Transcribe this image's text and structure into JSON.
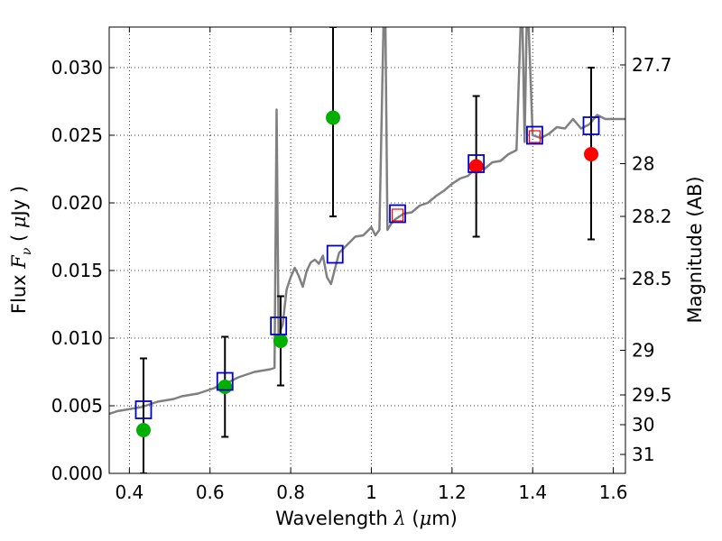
{
  "chart_data": {
    "type": "scatter",
    "xlabel": {
      "prefix": "Wavelength  ",
      "symbol": "λ",
      "unit_open": " (",
      "unit_mu": "μ",
      "unit_rest": "m)"
    },
    "ylabel": {
      "prefix": "Flux  ",
      "symbol": "F",
      "sub": "ν",
      "unit_open": "  ( ",
      "unit_mu": "μ",
      "unit_rest": "Jy )"
    },
    "y2label": "Magnitude (AB)",
    "xlim": [
      0.35,
      1.63
    ],
    "ylim": [
      0.0,
      0.033
    ],
    "grid": true,
    "x_ticks": [
      {
        "v": 0.4,
        "label": "0.4"
      },
      {
        "v": 0.6,
        "label": "0.6"
      },
      {
        "v": 0.8,
        "label": "0.8"
      },
      {
        "v": 1.0,
        "label": "1"
      },
      {
        "v": 1.2,
        "label": "1.2"
      },
      {
        "v": 1.4,
        "label": "1.4"
      },
      {
        "v": 1.6,
        "label": "1.6"
      }
    ],
    "y_ticks": [
      {
        "v": 0.0,
        "label": "0.000"
      },
      {
        "v": 0.005,
        "label": "0.005"
      },
      {
        "v": 0.01,
        "label": "0.010"
      },
      {
        "v": 0.015,
        "label": "0.015"
      },
      {
        "v": 0.02,
        "label": "0.020"
      },
      {
        "v": 0.025,
        "label": "0.025"
      },
      {
        "v": 0.03,
        "label": "0.030"
      }
    ],
    "mag_ticks": [
      {
        "label": "27.7",
        "flux": 0.0302
      },
      {
        "label": "28",
        "flux": 0.0229
      },
      {
        "label": "28.2",
        "flux": 0.019
      },
      {
        "label": "28.5",
        "flux": 0.0144
      },
      {
        "label": "29",
        "flux": 0.0091
      },
      {
        "label": "29.5",
        "flux": 0.0058
      },
      {
        "label": "30",
        "flux": 0.0036
      },
      {
        "label": "31",
        "flux": 0.0014
      }
    ],
    "series": [
      {
        "type": "line",
        "color": "#808080",
        "x": [
          0.35,
          0.37,
          0.39,
          0.41,
          0.43,
          0.45,
          0.47,
          0.49,
          0.51,
          0.53,
          0.55,
          0.57,
          0.59,
          0.61,
          0.63,
          0.65,
          0.67,
          0.69,
          0.71,
          0.73,
          0.75,
          0.76,
          0.765,
          0.77,
          0.775,
          0.78,
          0.79,
          0.8,
          0.81,
          0.82,
          0.83,
          0.84,
          0.85,
          0.86,
          0.87,
          0.88,
          0.89,
          0.9,
          0.92,
          0.94,
          0.96,
          0.98,
          1.0,
          1.01,
          1.02,
          1.03,
          1.035,
          1.04,
          1.05,
          1.06,
          1.08,
          1.1,
          1.12,
          1.14,
          1.16,
          1.18,
          1.2,
          1.22,
          1.24,
          1.26,
          1.28,
          1.3,
          1.32,
          1.34,
          1.36,
          1.37,
          1.375,
          1.38,
          1.385,
          1.39,
          1.4,
          1.42,
          1.44,
          1.46,
          1.48,
          1.5,
          1.52,
          1.54,
          1.56,
          1.58,
          1.6,
          1.63
        ],
        "y": [
          0.0044,
          0.0046,
          0.0047,
          0.0048,
          0.0049,
          0.0051,
          0.0053,
          0.0054,
          0.0055,
          0.0057,
          0.0058,
          0.0059,
          0.0061,
          0.0063,
          0.0066,
          0.0068,
          0.0071,
          0.0073,
          0.0075,
          0.0076,
          0.0077,
          0.0078,
          0.0269,
          0.01,
          0.0106,
          0.011,
          0.0136,
          0.0145,
          0.0152,
          0.0146,
          0.0138,
          0.015,
          0.0156,
          0.0158,
          0.0155,
          0.0161,
          0.0145,
          0.014,
          0.0163,
          0.0169,
          0.0175,
          0.0176,
          0.0182,
          0.0176,
          0.018,
          0.033,
          0.033,
          0.018,
          0.0185,
          0.0188,
          0.0192,
          0.0193,
          0.0198,
          0.02,
          0.0205,
          0.0209,
          0.0214,
          0.0218,
          0.022,
          0.0226,
          0.0225,
          0.023,
          0.0231,
          0.0236,
          0.0239,
          0.033,
          0.033,
          0.0245,
          0.033,
          0.033,
          0.025,
          0.0248,
          0.0251,
          0.0256,
          0.0255,
          0.0262,
          0.0255,
          0.0258,
          0.0265,
          0.0262,
          0.0262,
          0.0262
        ]
      },
      {
        "type": "scatter",
        "marker": "circle",
        "color": "#00b000",
        "x": [
          0.435,
          0.637,
          0.775,
          0.905
        ],
        "y": [
          0.0032,
          0.0064,
          0.0098,
          0.0263
        ]
      },
      {
        "type": "scatter",
        "marker": "circle",
        "color": "#ff0000",
        "x": [
          1.26,
          1.545
        ],
        "y": [
          0.0227,
          0.0236
        ]
      },
      {
        "type": "scatter",
        "marker": "square-open",
        "color": "#0000cc",
        "x": [
          0.435,
          0.637,
          0.77,
          0.91,
          1.065,
          1.26,
          1.405,
          1.545
        ],
        "y": [
          0.0047,
          0.0068,
          0.0109,
          0.0162,
          0.0192,
          0.0229,
          0.025,
          0.0257
        ]
      },
      {
        "type": "scatter",
        "marker": "square-open-small",
        "color": "#ff0000",
        "x": [
          1.065,
          1.405
        ],
        "y": [
          0.0191,
          0.0249
        ]
      }
    ],
    "error_bars": [
      {
        "x": 0.435,
        "low": 0.0,
        "high": 0.0085
      },
      {
        "x": 0.637,
        "low": 0.0027,
        "high": 0.0101
      },
      {
        "x": 0.775,
        "low": 0.0065,
        "high": 0.0131
      },
      {
        "x": 0.905,
        "low": 0.019,
        "high": 0.033
      },
      {
        "x": 1.26,
        "low": 0.0175,
        "high": 0.0279
      },
      {
        "x": 1.545,
        "low": 0.0173,
        "high": 0.03
      }
    ]
  }
}
